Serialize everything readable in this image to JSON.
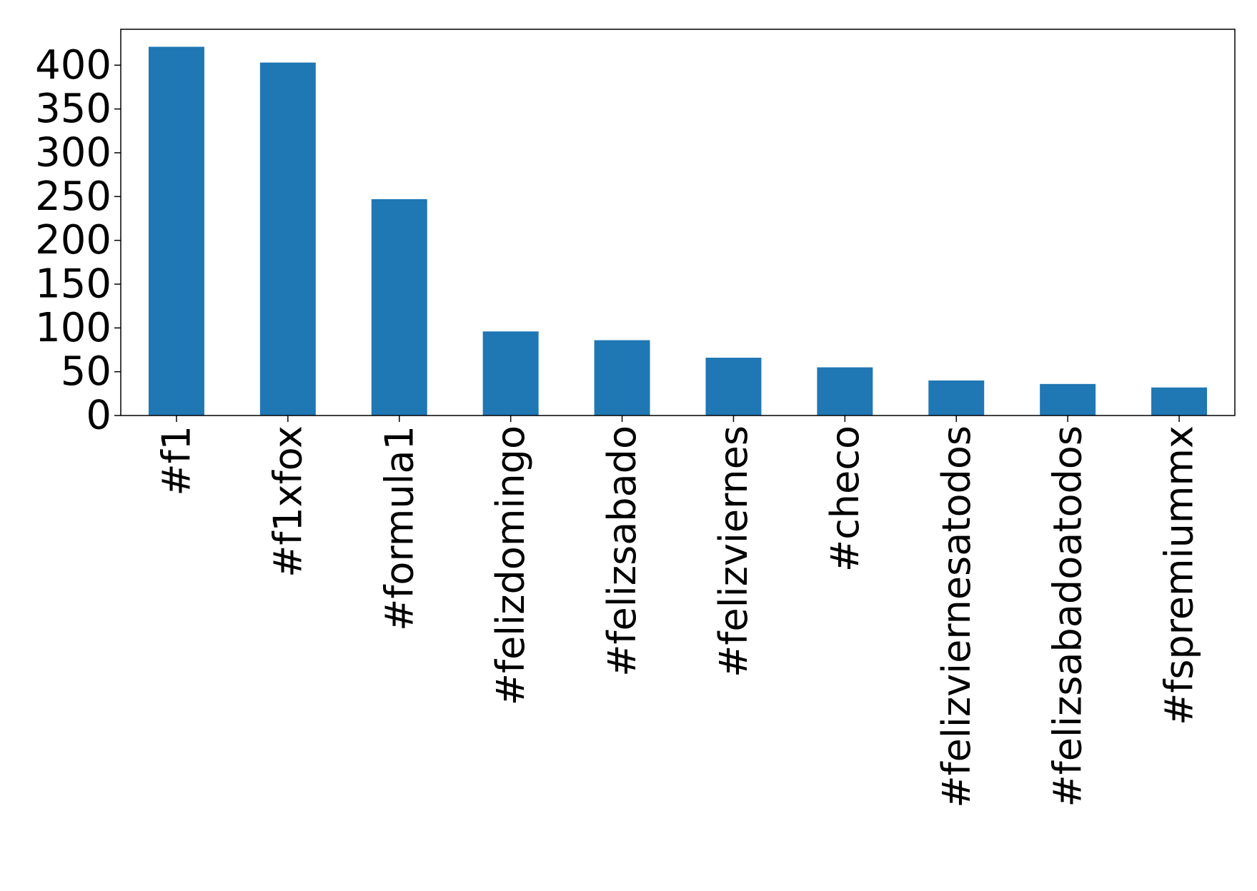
{
  "chart_data": {
    "type": "bar",
    "categories": [
      "#f1",
      "#f1xfox",
      "#formula1",
      "#felizdomingo",
      "#felizsabado",
      "#felizviernes",
      "#checo",
      "#felizviernesatodos",
      "#felizsabadoatodos",
      "#fspremiummx"
    ],
    "values": [
      421,
      403,
      247,
      96,
      86,
      66,
      55,
      40,
      36,
      32
    ],
    "color": "#1f77b4",
    "ylim": [
      0,
      441
    ],
    "yticks": [
      0,
      50,
      100,
      150,
      200,
      250,
      300,
      350,
      400
    ],
    "grid": false
  }
}
